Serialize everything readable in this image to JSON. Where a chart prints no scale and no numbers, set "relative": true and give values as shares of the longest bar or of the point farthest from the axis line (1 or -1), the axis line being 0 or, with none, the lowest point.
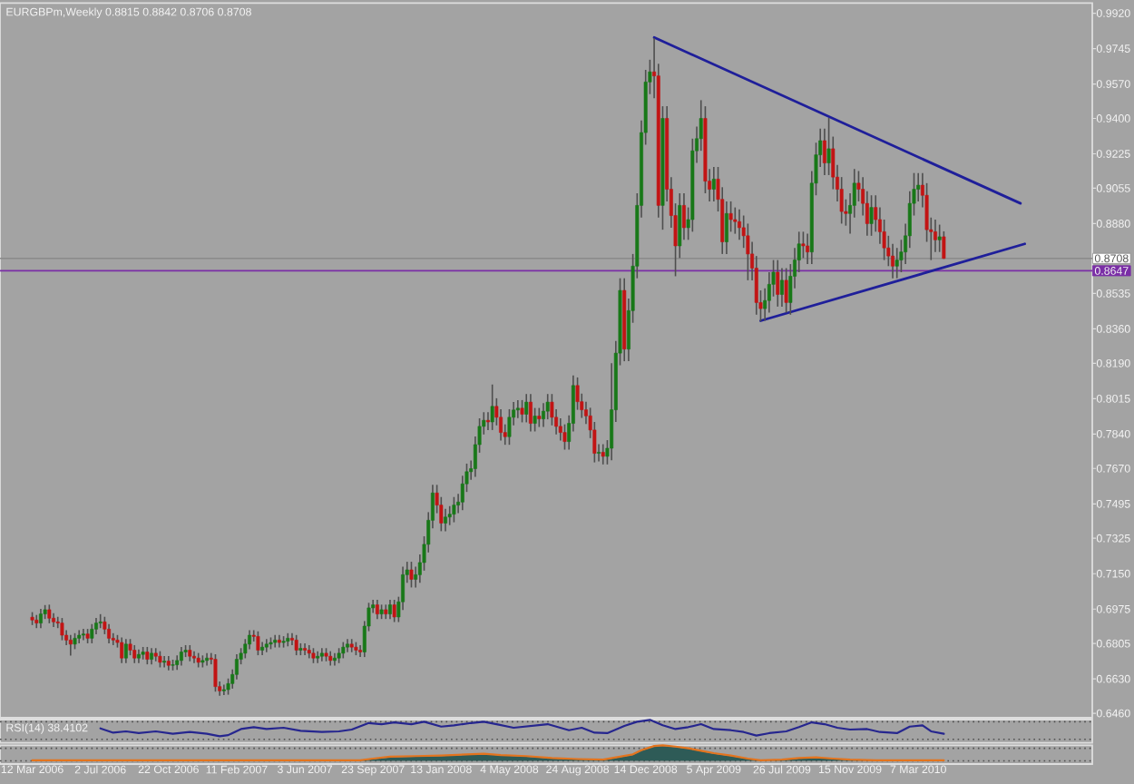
{
  "chart_data": [
    {
      "type": "candlestick",
      "title": "EURGBPm,Weekly 0.8815 0.8842 0.8706 0.8708",
      "x": [
        "2006-03-12",
        "2006-03-19",
        "2006-03-26",
        "2006-04-02",
        "2006-04-09",
        "2006-04-16",
        "2006-04-23",
        "2006-04-30",
        "2006-05-07",
        "2006-05-14",
        "2006-05-21",
        "2006-05-28",
        "2006-06-04",
        "2006-06-11",
        "2006-06-18",
        "2006-06-25",
        "2006-07-02",
        "2006-07-09",
        "2006-07-16",
        "2006-07-23",
        "2006-07-30",
        "2006-08-06",
        "2006-08-13",
        "2006-08-20",
        "2006-08-27",
        "2006-09-03",
        "2006-09-10",
        "2006-09-17",
        "2006-09-24",
        "2006-10-01",
        "2006-10-08",
        "2006-10-15",
        "2006-10-22",
        "2006-10-29",
        "2006-11-05",
        "2006-11-12",
        "2006-11-19",
        "2006-11-26",
        "2006-12-03",
        "2006-12-10",
        "2006-12-17",
        "2006-12-24",
        "2006-12-31",
        "2007-01-07",
        "2007-01-14",
        "2007-01-21",
        "2007-01-28",
        "2007-02-04",
        "2007-02-11",
        "2007-02-18",
        "2007-02-25",
        "2007-03-04",
        "2007-03-11",
        "2007-03-18",
        "2007-03-25",
        "2007-04-01",
        "2007-04-08",
        "2007-04-15",
        "2007-04-22",
        "2007-04-29",
        "2007-05-06",
        "2007-05-13",
        "2007-05-20",
        "2007-05-27",
        "2007-06-03",
        "2007-06-10",
        "2007-06-17",
        "2007-06-24",
        "2007-07-01",
        "2007-07-08",
        "2007-07-15",
        "2007-07-22",
        "2007-07-29",
        "2007-08-05",
        "2007-08-12",
        "2007-08-19",
        "2007-08-26",
        "2007-09-02",
        "2007-09-09",
        "2007-09-16",
        "2007-09-23",
        "2007-09-30",
        "2007-10-07",
        "2007-10-14",
        "2007-10-21",
        "2007-10-28",
        "2007-11-04",
        "2007-11-11",
        "2007-11-18",
        "2007-11-25",
        "2007-12-02",
        "2007-12-09",
        "2007-12-16",
        "2007-12-23",
        "2007-12-30",
        "2008-01-06",
        "2008-01-13",
        "2008-01-20",
        "2008-01-27",
        "2008-02-03",
        "2008-02-10",
        "2008-02-17",
        "2008-02-24",
        "2008-03-02",
        "2008-03-09",
        "2008-03-16",
        "2008-03-23",
        "2008-03-30",
        "2008-04-06",
        "2008-04-13",
        "2008-04-20",
        "2008-04-27",
        "2008-05-04",
        "2008-05-11",
        "2008-05-18",
        "2008-05-25",
        "2008-06-01",
        "2008-06-08",
        "2008-06-15",
        "2008-06-22",
        "2008-06-29",
        "2008-07-06",
        "2008-07-13",
        "2008-07-20",
        "2008-07-27",
        "2008-08-03",
        "2008-08-10",
        "2008-08-17",
        "2008-08-24",
        "2008-08-31",
        "2008-09-07",
        "2008-09-14",
        "2008-09-21",
        "2008-09-28",
        "2008-10-05",
        "2008-10-12",
        "2008-10-19",
        "2008-10-26",
        "2008-11-02",
        "2008-11-09",
        "2008-11-16",
        "2008-11-23",
        "2008-11-30",
        "2008-12-07",
        "2008-12-14",
        "2008-12-21",
        "2008-12-28",
        "2009-01-04",
        "2009-01-11",
        "2009-01-18",
        "2009-01-25",
        "2009-02-01",
        "2009-02-08",
        "2009-02-15",
        "2009-02-22",
        "2009-03-01",
        "2009-03-08",
        "2009-03-15",
        "2009-03-22",
        "2009-03-29",
        "2009-04-05",
        "2009-04-12",
        "2009-04-19",
        "2009-04-26",
        "2009-05-03",
        "2009-05-10",
        "2009-05-17",
        "2009-05-24",
        "2009-05-31",
        "2009-06-07",
        "2009-06-14",
        "2009-06-21",
        "2009-06-28",
        "2009-07-05",
        "2009-07-12",
        "2009-07-19",
        "2009-07-26",
        "2009-08-02",
        "2009-08-09",
        "2009-08-16",
        "2009-08-23",
        "2009-08-30",
        "2009-09-06",
        "2009-09-13",
        "2009-09-20",
        "2009-09-27",
        "2009-10-04",
        "2009-10-11",
        "2009-10-18",
        "2009-10-25",
        "2009-11-01",
        "2009-11-08",
        "2009-11-15",
        "2009-11-22",
        "2009-11-29",
        "2009-12-06",
        "2009-12-13",
        "2009-12-20",
        "2009-12-27",
        "2010-01-03",
        "2010-01-10",
        "2010-01-17",
        "2010-01-24",
        "2010-01-31",
        "2010-02-07",
        "2010-02-14",
        "2010-02-21",
        "2010-02-28",
        "2010-03-07",
        "2010-03-14",
        "2010-03-21",
        "2010-03-28",
        "2010-04-04",
        "2010-04-11",
        "2010-04-18"
      ],
      "ohlc": [
        [
          0.6935,
          0.696,
          0.6896,
          0.6921
        ],
        [
          0.6921,
          0.6946,
          0.6881,
          0.6906
        ],
        [
          0.6906,
          0.6976,
          0.6881,
          0.6951
        ],
        [
          0.6951,
          0.6995,
          0.6926,
          0.6972
        ],
        [
          0.6972,
          0.6997,
          0.6905,
          0.693
        ],
        [
          0.693,
          0.6955,
          0.6887,
          0.6912
        ],
        [
          0.6912,
          0.6937,
          0.6881,
          0.6906
        ],
        [
          0.6906,
          0.6931,
          0.6821,
          0.6846
        ],
        [
          0.6846,
          0.6871,
          0.6797,
          0.6822
        ],
        [
          0.6822,
          0.6847,
          0.6745,
          0.6802
        ],
        [
          0.6802,
          0.6856,
          0.6777,
          0.6831
        ],
        [
          0.6831,
          0.6871,
          0.6806,
          0.6846
        ],
        [
          0.6846,
          0.6877,
          0.6821,
          0.6852
        ],
        [
          0.6852,
          0.6877,
          0.6806,
          0.6831
        ],
        [
          0.6831,
          0.6901,
          0.6806,
          0.6876
        ],
        [
          0.6876,
          0.6931,
          0.6851,
          0.6906
        ],
        [
          0.6906,
          0.695,
          0.6881,
          0.6912
        ],
        [
          0.6912,
          0.6937,
          0.6851,
          0.6876
        ],
        [
          0.6876,
          0.6901,
          0.6806,
          0.6831
        ],
        [
          0.6831,
          0.6856,
          0.6797,
          0.6822
        ],
        [
          0.6822,
          0.6847,
          0.6785,
          0.681
        ],
        [
          0.681,
          0.6835,
          0.6708,
          0.6733
        ],
        [
          0.6733,
          0.6827,
          0.6708,
          0.6802
        ],
        [
          0.6802,
          0.6827,
          0.6747,
          0.6772
        ],
        [
          0.6772,
          0.6797,
          0.6708,
          0.6733
        ],
        [
          0.6733,
          0.6776,
          0.6708,
          0.6751
        ],
        [
          0.6751,
          0.6788,
          0.6726,
          0.6763
        ],
        [
          0.6763,
          0.6788,
          0.6702,
          0.6727
        ],
        [
          0.6727,
          0.6782,
          0.6702,
          0.6757
        ],
        [
          0.6757,
          0.6782,
          0.6717,
          0.6742
        ],
        [
          0.6742,
          0.6767,
          0.6687,
          0.6712
        ],
        [
          0.6712,
          0.6743,
          0.6687,
          0.6718
        ],
        [
          0.6718,
          0.6743,
          0.6672,
          0.6697
        ],
        [
          0.6697,
          0.6725,
          0.6672,
          0.67
        ],
        [
          0.67,
          0.6746,
          0.6675,
          0.6721
        ],
        [
          0.6721,
          0.6788,
          0.6696,
          0.6763
        ],
        [
          0.6763,
          0.6797,
          0.6738,
          0.6772
        ],
        [
          0.6772,
          0.6797,
          0.6717,
          0.6742
        ],
        [
          0.6742,
          0.6767,
          0.6708,
          0.6733
        ],
        [
          0.6733,
          0.6758,
          0.6687,
          0.6712
        ],
        [
          0.6712,
          0.6746,
          0.6687,
          0.6721
        ],
        [
          0.6721,
          0.6758,
          0.6696,
          0.6733
        ],
        [
          0.6733,
          0.6758,
          0.6702,
          0.6727
        ],
        [
          0.6727,
          0.6752,
          0.6567,
          0.6592
        ],
        [
          0.6592,
          0.6617,
          0.6547,
          0.6571
        ],
        [
          0.6571,
          0.6602,
          0.655,
          0.6577
        ],
        [
          0.6577,
          0.6632,
          0.6552,
          0.6607
        ],
        [
          0.6607,
          0.6677,
          0.6582,
          0.6652
        ],
        [
          0.6652,
          0.6752,
          0.6627,
          0.6727
        ],
        [
          0.6727,
          0.6782,
          0.6702,
          0.6757
        ],
        [
          0.6757,
          0.6827,
          0.6732,
          0.6802
        ],
        [
          0.6802,
          0.6871,
          0.6777,
          0.6846
        ],
        [
          0.6846,
          0.6871,
          0.6815,
          0.684
        ],
        [
          0.684,
          0.6865,
          0.6747,
          0.6772
        ],
        [
          0.6772,
          0.6812,
          0.6747,
          0.6787
        ],
        [
          0.6787,
          0.6827,
          0.6762,
          0.6802
        ],
        [
          0.6802,
          0.6835,
          0.6777,
          0.681
        ],
        [
          0.681,
          0.6847,
          0.6785,
          0.6822
        ],
        [
          0.6822,
          0.6847,
          0.6785,
          0.681
        ],
        [
          0.681,
          0.6841,
          0.6785,
          0.6816
        ],
        [
          0.6816,
          0.6856,
          0.6791,
          0.6831
        ],
        [
          0.6831,
          0.6856,
          0.6797,
          0.6822
        ],
        [
          0.6822,
          0.6847,
          0.6747,
          0.6772
        ],
        [
          0.6772,
          0.6806,
          0.6747,
          0.6781
        ],
        [
          0.6781,
          0.6806,
          0.6747,
          0.6772
        ],
        [
          0.6772,
          0.6797,
          0.6732,
          0.6757
        ],
        [
          0.6757,
          0.6782,
          0.6708,
          0.6733
        ],
        [
          0.6733,
          0.6767,
          0.6708,
          0.6742
        ],
        [
          0.6742,
          0.6782,
          0.6717,
          0.6757
        ],
        [
          0.6757,
          0.6782,
          0.6717,
          0.6742
        ],
        [
          0.6742,
          0.6767,
          0.6696,
          0.6721
        ],
        [
          0.6721,
          0.6758,
          0.6696,
          0.6733
        ],
        [
          0.6733,
          0.6782,
          0.6708,
          0.6757
        ],
        [
          0.6757,
          0.6812,
          0.6732,
          0.6787
        ],
        [
          0.6787,
          0.6827,
          0.6762,
          0.6802
        ],
        [
          0.6802,
          0.6827,
          0.6762,
          0.6787
        ],
        [
          0.6787,
          0.6812,
          0.6747,
          0.6772
        ],
        [
          0.6772,
          0.6797,
          0.6738,
          0.6763
        ],
        [
          0.6763,
          0.6916,
          0.6738,
          0.6891
        ],
        [
          0.6891,
          0.7006,
          0.6866,
          0.6981
        ],
        [
          0.6981,
          0.7021,
          0.6956,
          0.6996
        ],
        [
          0.6996,
          0.7021,
          0.6926,
          0.6951
        ],
        [
          0.6951,
          0.6997,
          0.6926,
          0.6972
        ],
        [
          0.6972,
          0.6997,
          0.6926,
          0.6951
        ],
        [
          0.6951,
          0.7021,
          0.6926,
          0.6996
        ],
        [
          0.6996,
          0.7021,
          0.6911,
          0.6936
        ],
        [
          0.6936,
          0.7036,
          0.6911,
          0.7011
        ],
        [
          0.7011,
          0.7185,
          0.6971,
          0.7145
        ],
        [
          0.7145,
          0.7209,
          0.7105,
          0.7169
        ],
        [
          0.7169,
          0.7209,
          0.7082,
          0.7122
        ],
        [
          0.7122,
          0.7185,
          0.7082,
          0.7145
        ],
        [
          0.7145,
          0.7245,
          0.7105,
          0.7205
        ],
        [
          0.7205,
          0.7335,
          0.7165,
          0.7295
        ],
        [
          0.7295,
          0.7454,
          0.7255,
          0.7414
        ],
        [
          0.7414,
          0.7589,
          0.7374,
          0.7549
        ],
        [
          0.7549,
          0.7589,
          0.7449,
          0.7489
        ],
        [
          0.7489,
          0.7529,
          0.736,
          0.74
        ],
        [
          0.74,
          0.747,
          0.736,
          0.743
        ],
        [
          0.743,
          0.7484,
          0.739,
          0.7444
        ],
        [
          0.7444,
          0.7529,
          0.7404,
          0.7489
        ],
        [
          0.7489,
          0.7544,
          0.7449,
          0.7504
        ],
        [
          0.7504,
          0.7634,
          0.7464,
          0.7594
        ],
        [
          0.7594,
          0.7694,
          0.7554,
          0.7654
        ],
        [
          0.7654,
          0.7709,
          0.7614,
          0.7669
        ],
        [
          0.7669,
          0.7828,
          0.7629,
          0.7788
        ],
        [
          0.7788,
          0.7918,
          0.7748,
          0.7878
        ],
        [
          0.7878,
          0.7948,
          0.7838,
          0.7908
        ],
        [
          0.7908,
          0.7948,
          0.786,
          0.79
        ],
        [
          0.79,
          0.8085,
          0.786,
          0.7977
        ],
        [
          0.7977,
          0.8017,
          0.7883,
          0.7923
        ],
        [
          0.7923,
          0.7963,
          0.7808,
          0.7848
        ],
        [
          0.7848,
          0.7888,
          0.7787,
          0.7827
        ],
        [
          0.7827,
          0.7963,
          0.7787,
          0.7923
        ],
        [
          0.7923,
          0.7999,
          0.7883,
          0.7959
        ],
        [
          0.7959,
          0.8008,
          0.7919,
          0.7968
        ],
        [
          0.7968,
          0.8008,
          0.7898,
          0.7938
        ],
        [
          0.7938,
          0.8038,
          0.7898,
          0.7998
        ],
        [
          0.7998,
          0.8038,
          0.7853,
          0.7893
        ],
        [
          0.7893,
          0.7969,
          0.7853,
          0.7929
        ],
        [
          0.7929,
          0.7969,
          0.7875,
          0.7915
        ],
        [
          0.7915,
          0.7993,
          0.7875,
          0.7953
        ],
        [
          0.7953,
          0.8038,
          0.7913,
          0.7998
        ],
        [
          0.7998,
          0.8038,
          0.7883,
          0.7923
        ],
        [
          0.7923,
          0.7963,
          0.7838,
          0.7878
        ],
        [
          0.7878,
          0.7918,
          0.7808,
          0.7848
        ],
        [
          0.7848,
          0.7888,
          0.7763,
          0.7803
        ],
        [
          0.7803,
          0.7933,
          0.7763,
          0.7893
        ],
        [
          0.7893,
          0.813,
          0.7853,
          0.808
        ],
        [
          0.808,
          0.812,
          0.796,
          0.8
        ],
        [
          0.8,
          0.804,
          0.792,
          0.796
        ],
        [
          0.796,
          0.8,
          0.789,
          0.793
        ],
        [
          0.793,
          0.797,
          0.782,
          0.786
        ],
        [
          0.786,
          0.79,
          0.77,
          0.7745
        ],
        [
          0.7745,
          0.779,
          0.7705,
          0.775
        ],
        [
          0.775,
          0.779,
          0.769,
          0.773
        ],
        [
          0.773,
          0.781,
          0.769,
          0.777
        ],
        [
          0.777,
          0.819,
          0.771,
          0.796
        ],
        [
          0.796,
          0.83,
          0.79,
          0.824
        ],
        [
          0.824,
          0.861,
          0.818,
          0.855
        ],
        [
          0.855,
          0.861,
          0.82,
          0.826
        ],
        [
          0.826,
          0.851,
          0.82,
          0.845
        ],
        [
          0.845,
          0.873,
          0.839,
          0.867
        ],
        [
          0.867,
          0.903,
          0.861,
          0.897
        ],
        [
          0.897,
          0.939,
          0.891,
          0.933
        ],
        [
          0.933,
          0.964,
          0.927,
          0.958
        ],
        [
          0.958,
          0.969,
          0.952,
          0.963
        ],
        [
          0.963,
          0.9797,
          0.95,
          0.961
        ],
        [
          0.961,
          0.967,
          0.891,
          0.897
        ],
        [
          0.897,
          0.946,
          0.885,
          0.94
        ],
        [
          0.94,
          0.946,
          0.899,
          0.905
        ],
        [
          0.905,
          0.911,
          0.886,
          0.892
        ],
        [
          0.892,
          0.898,
          0.862,
          0.877
        ],
        [
          0.877,
          0.903,
          0.871,
          0.897
        ],
        [
          0.897,
          0.903,
          0.88,
          0.886
        ],
        [
          0.886,
          0.896,
          0.88,
          0.89
        ],
        [
          0.89,
          0.93,
          0.884,
          0.924
        ],
        [
          0.924,
          0.936,
          0.918,
          0.93
        ],
        [
          0.93,
          0.949,
          0.924,
          0.94
        ],
        [
          0.94,
          0.946,
          0.903,
          0.909
        ],
        [
          0.909,
          0.915,
          0.899,
          0.905
        ],
        [
          0.905,
          0.916,
          0.899,
          0.91
        ],
        [
          0.91,
          0.916,
          0.894,
          0.9
        ],
        [
          0.9,
          0.906,
          0.873,
          0.879
        ],
        [
          0.879,
          0.899,
          0.873,
          0.893
        ],
        [
          0.893,
          0.899,
          0.884,
          0.89
        ],
        [
          0.89,
          0.896,
          0.883,
          0.889
        ],
        [
          0.889,
          0.895,
          0.88,
          0.886
        ],
        [
          0.886,
          0.892,
          0.876,
          0.882
        ],
        [
          0.882,
          0.888,
          0.86,
          0.873
        ],
        [
          0.873,
          0.879,
          0.86,
          0.866
        ],
        [
          0.866,
          0.872,
          0.843,
          0.849
        ],
        [
          0.849,
          0.855,
          0.8398,
          0.846
        ],
        [
          0.846,
          0.856,
          0.84,
          0.85
        ],
        [
          0.85,
          0.864,
          0.844,
          0.858
        ],
        [
          0.858,
          0.87,
          0.852,
          0.864
        ],
        [
          0.864,
          0.87,
          0.847,
          0.853
        ],
        [
          0.853,
          0.866,
          0.847,
          0.86
        ],
        [
          0.86,
          0.866,
          0.844,
          0.849
        ],
        [
          0.849,
          0.868,
          0.843,
          0.862
        ],
        [
          0.862,
          0.876,
          0.856,
          0.87
        ],
        [
          0.87,
          0.884,
          0.864,
          0.878
        ],
        [
          0.878,
          0.884,
          0.871,
          0.877
        ],
        [
          0.877,
          0.883,
          0.868,
          0.874
        ],
        [
          0.874,
          0.914,
          0.868,
          0.908
        ],
        [
          0.908,
          0.928,
          0.902,
          0.922
        ],
        [
          0.922,
          0.935,
          0.916,
          0.929
        ],
        [
          0.929,
          0.935,
          0.912,
          0.918
        ],
        [
          0.918,
          0.9402,
          0.912,
          0.925
        ],
        [
          0.925,
          0.931,
          0.905,
          0.911
        ],
        [
          0.911,
          0.917,
          0.899,
          0.905
        ],
        [
          0.905,
          0.911,
          0.888,
          0.894
        ],
        [
          0.894,
          0.9,
          0.887,
          0.893
        ],
        [
          0.893,
          0.903,
          0.883,
          0.897
        ],
        [
          0.897,
          0.915,
          0.891,
          0.908
        ],
        [
          0.908,
          0.914,
          0.899,
          0.905
        ],
        [
          0.905,
          0.911,
          0.892,
          0.898
        ],
        [
          0.898,
          0.904,
          0.882,
          0.888
        ],
        [
          0.888,
          0.902,
          0.882,
          0.896
        ],
        [
          0.896,
          0.902,
          0.884,
          0.89
        ],
        [
          0.89,
          0.896,
          0.878,
          0.884
        ],
        [
          0.884,
          0.89,
          0.87,
          0.876
        ],
        [
          0.876,
          0.882,
          0.867,
          0.872
        ],
        [
          0.872,
          0.878,
          0.861,
          0.867
        ],
        [
          0.867,
          0.876,
          0.861,
          0.87
        ],
        [
          0.87,
          0.88,
          0.864,
          0.874
        ],
        [
          0.874,
          0.888,
          0.868,
          0.882
        ],
        [
          0.882,
          0.904,
          0.876,
          0.898
        ],
        [
          0.898,
          0.913,
          0.892,
          0.905
        ],
        [
          0.905,
          0.913,
          0.899,
          0.907
        ],
        [
          0.907,
          0.913,
          0.896,
          0.902
        ],
        [
          0.902,
          0.908,
          0.879,
          0.885
        ],
        [
          0.885,
          0.891,
          0.87,
          0.884
        ],
        [
          0.884,
          0.89,
          0.874,
          0.88
        ],
        [
          0.88,
          0.8875,
          0.874,
          0.8815
        ],
        [
          0.8815,
          0.8842,
          0.8706,
          0.8708
        ]
      ],
      "series": [
        {
          "type": "line",
          "x": [
            "2008-12-28",
            "2010-08-22"
          ],
          "values": [
            0.98,
            0.898
          ],
          "color": "#1f1f9a"
        },
        {
          "type": "line",
          "x": [
            "2009-06-21",
            "2010-08-29"
          ],
          "values": [
            0.84,
            0.878
          ],
          "color": "#1f1f9a"
        }
      ],
      "ref_lines": [
        {
          "axis": "y",
          "value": 0.8708,
          "label": "0.8708",
          "color": "#8a8a8a"
        },
        {
          "axis": "y",
          "value": 0.8647,
          "label": "0.8647",
          "color": "#7a2ea6"
        }
      ],
      "xlim": [
        "2006-01-18",
        "2010-12-18"
      ],
      "ylim": [
        0.6438,
        0.997
      ],
      "yticks": [
        {
          "value": 0.992,
          "label": "0.9920"
        },
        {
          "value": 0.9745,
          "label": "0.9745"
        },
        {
          "value": 0.957,
          "label": "0.9570"
        },
        {
          "value": 0.94,
          "label": "0.9400"
        },
        {
          "value": 0.9225,
          "label": "0.9225"
        },
        {
          "value": 0.9055,
          "label": "0.9055"
        },
        {
          "value": 0.888,
          "label": "0.8880"
        },
        {
          "value": 0.8535,
          "label": "0.8535"
        },
        {
          "value": 0.836,
          "label": "0.8360"
        },
        {
          "value": 0.819,
          "label": "0.8190"
        },
        {
          "value": 0.8015,
          "label": "0.8015"
        },
        {
          "value": 0.784,
          "label": "0.7840"
        },
        {
          "value": 0.767,
          "label": "0.7670"
        },
        {
          "value": 0.7495,
          "label": "0.7495"
        },
        {
          "value": 0.7325,
          "label": "0.7325"
        },
        {
          "value": 0.715,
          "label": "0.7150"
        },
        {
          "value": 0.6975,
          "label": "0.6975"
        },
        {
          "value": 0.6805,
          "label": "0.6805"
        },
        {
          "value": 0.663,
          "label": "0.6630"
        },
        {
          "value": 0.646,
          "label": "0.6460"
        }
      ],
      "tick_labels": "y"
    },
    {
      "type": "line",
      "title": "RSI(14) 38.4102",
      "relative": true,
      "color": "#26268f",
      "x": [
        "2006-07-02",
        "2006-07-23",
        "2006-08-13",
        "2006-09-03",
        "2006-10-01",
        "2006-10-29",
        "2006-11-26",
        "2006-12-24",
        "2007-01-14",
        "2007-01-28",
        "2007-02-18",
        "2007-03-11",
        "2007-04-01",
        "2007-04-29",
        "2007-05-27",
        "2007-07-01",
        "2007-07-29",
        "2007-08-19",
        "2007-09-16",
        "2007-10-07",
        "2007-10-28",
        "2007-11-25",
        "2007-12-16",
        "2008-01-13",
        "2008-02-03",
        "2008-03-02",
        "2008-03-23",
        "2008-04-13",
        "2008-05-11",
        "2008-06-08",
        "2008-07-06",
        "2008-08-10",
        "2008-08-31",
        "2008-09-21",
        "2008-10-12",
        "2008-11-09",
        "2008-11-30",
        "2008-12-21",
        "2009-01-11",
        "2009-02-01",
        "2009-02-22",
        "2009-03-15",
        "2009-04-05",
        "2009-05-03",
        "2009-05-24",
        "2009-06-14",
        "2009-07-05",
        "2009-08-02",
        "2009-08-23",
        "2009-09-13",
        "2009-10-04",
        "2009-10-25",
        "2009-11-15",
        "2009-12-13",
        "2010-01-03",
        "2010-01-31",
        "2010-02-21",
        "2010-03-14",
        "2010-03-28",
        "2010-04-18"
      ],
      "values": [
        0.48,
        0.22,
        0.3,
        0.19,
        0.3,
        0.15,
        0.26,
        0.15,
        0.0,
        0.07,
        0.44,
        0.56,
        0.44,
        0.52,
        0.33,
        0.26,
        0.3,
        0.41,
        0.81,
        0.74,
        0.85,
        0.74,
        0.89,
        0.59,
        0.67,
        0.81,
        0.89,
        0.74,
        0.52,
        0.63,
        0.74,
        0.37,
        0.52,
        0.22,
        0.19,
        0.63,
        0.89,
        1.0,
        0.67,
        0.44,
        0.56,
        0.74,
        0.44,
        0.37,
        0.26,
        0.04,
        0.19,
        0.3,
        0.56,
        0.85,
        0.74,
        0.52,
        0.41,
        0.44,
        0.26,
        0.19,
        0.59,
        0.67,
        0.3,
        0.15
      ],
      "ref_lines": [
        {
          "axis": "y",
          "value": 0.89,
          "color": "#505050",
          "line_style": "dotted"
        },
        {
          "axis": "y",
          "value": -0.19,
          "color": "#505050",
          "line_style": "dotted"
        }
      ],
      "xlim": [
        "2006-01-18",
        "2010-12-18"
      ],
      "tick_labels": false
    },
    {
      "type": "area",
      "relative": true,
      "x": [
        "2006-03-12",
        "2006-07-30",
        "2006-12-17",
        "2007-05-06",
        "2007-09-02",
        "2007-09-23",
        "2007-10-21",
        "2007-12-02",
        "2008-01-13",
        "2008-02-24",
        "2008-03-23",
        "2008-04-20",
        "2008-06-01",
        "2008-07-13",
        "2008-08-24",
        "2008-10-05",
        "2008-11-02",
        "2008-11-23",
        "2008-12-07",
        "2008-12-28",
        "2009-01-11",
        "2009-02-01",
        "2009-02-22",
        "2009-03-15",
        "2009-04-05",
        "2009-05-03",
        "2009-05-31",
        "2009-06-21",
        "2009-07-26",
        "2009-08-23",
        "2009-09-20",
        "2009-10-18",
        "2009-11-15",
        "2009-12-27",
        "2010-02-14",
        "2010-04-18"
      ],
      "series": [
        {
          "type": "area",
          "color": "#2e5b57",
          "values": [
            null,
            null,
            null,
            null,
            0.0,
            0.1,
            0.22,
            0.27,
            0.31,
            0.38,
            0.42,
            0.35,
            0.27,
            0.15,
            0.08,
            0.04,
            0.23,
            0.38,
            0.65,
            0.92,
            0.96,
            0.88,
            0.77,
            0.62,
            0.46,
            0.31,
            0.12,
            0.0,
            0.04,
            0.15,
            0.19,
            0.12,
            0.04,
            0.0,
            null,
            null
          ]
        },
        {
          "type": "line",
          "color": "#e3741e",
          "values": [
            0.04,
            0.04,
            0.04,
            0.04,
            0.04,
            0.15,
            0.27,
            0.31,
            0.35,
            0.42,
            0.46,
            0.38,
            0.31,
            0.19,
            0.12,
            0.08,
            0.27,
            0.42,
            0.69,
            0.96,
            1.0,
            0.92,
            0.81,
            0.65,
            0.5,
            0.35,
            0.15,
            0.04,
            0.08,
            0.19,
            0.23,
            0.15,
            0.08,
            0.04,
            0.04,
            0.04
          ]
        }
      ],
      "ref_lines": [
        {
          "axis": "y",
          "value": 0.81,
          "color": "#505050",
          "line_style": "dotted"
        },
        {
          "axis": "y",
          "value": 0,
          "color": "#505050",
          "line_style": "dotted"
        }
      ],
      "xlim": [
        "2006-01-18",
        "2010-12-18"
      ],
      "xticks": [
        {
          "value": "2006-03-12",
          "label": "12 Mar 2006"
        },
        {
          "value": "2006-07-02",
          "label": "2 Jul 2006"
        },
        {
          "value": "2006-10-22",
          "label": "22 Oct 2006"
        },
        {
          "value": "2007-02-11",
          "label": "11 Feb 2007"
        },
        {
          "value": "2007-06-03",
          "label": "3 Jun 2007"
        },
        {
          "value": "2007-09-23",
          "label": "23 Sep 2007"
        },
        {
          "value": "2008-01-13",
          "label": "13 Jan 2008"
        },
        {
          "value": "2008-05-04",
          "label": "4 May 2008"
        },
        {
          "value": "2008-08-24",
          "label": "24 Aug 2008"
        },
        {
          "value": "2008-12-14",
          "label": "14 Dec 2008"
        },
        {
          "value": "2009-04-05",
          "label": "5 Apr 2009"
        },
        {
          "value": "2009-07-26",
          "label": "26 Jul 2009"
        },
        {
          "value": "2009-11-15",
          "label": "15 Nov 2009"
        },
        {
          "value": "2010-03-07",
          "label": "7 Mar 2010"
        }
      ],
      "tick_labels": "x"
    }
  ]
}
